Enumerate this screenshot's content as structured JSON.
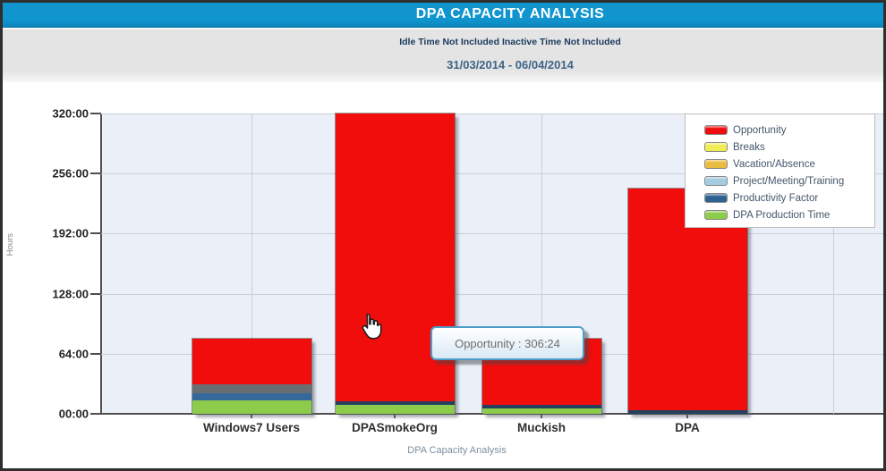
{
  "header": {
    "title": "DPA CAPACITY ANALYSIS",
    "note": "Idle Time Not Included Inactive Time Not Included",
    "date_range": "31/03/2014 - 06/04/2014"
  },
  "axes": {
    "y_label": "Hours",
    "x_title": "DPA Capacity Analysis",
    "y_ticks": [
      {
        "label": "320:00",
        "hours": 320
      },
      {
        "label": "256:00",
        "hours": 256
      },
      {
        "label": "192:00",
        "hours": 192
      },
      {
        "label": "128:00",
        "hours": 128
      },
      {
        "label": "64:00",
        "hours": 64
      },
      {
        "label": "00:00",
        "hours": 0
      }
    ]
  },
  "legend": {
    "items": [
      {
        "label": "Opportunity",
        "color": "#ee0c0c"
      },
      {
        "label": "Breaks",
        "color": "#f0ec55"
      },
      {
        "label": "Vacation/Absence",
        "color": "#e8bc41"
      },
      {
        "label": "Project/Meeting/Training",
        "color": "#a5cbdf"
      },
      {
        "label": "Productivity Factor",
        "color": "#2f6191"
      },
      {
        "label": "DPA Production Time",
        "color": "#8dcb4b"
      }
    ]
  },
  "tooltip": {
    "text": "Opportunity : 306:24"
  },
  "chart_data": {
    "type": "bar",
    "stacked": true,
    "title": "DPA Capacity Analysis",
    "xlabel": "DPA Capacity Analysis",
    "ylabel": "Hours",
    "ylim": [
      0,
      320
    ],
    "y_tick_interval_hours": 64,
    "y_tick_format": "HH:MM",
    "grid": true,
    "legend_position": "top-right",
    "categories": [
      "Windows7 Users",
      "DPASmokeOrg",
      "Muckish",
      "DPA"
    ],
    "series": [
      {
        "name": "Opportunity",
        "color": "#ee0c0c",
        "values_hours": [
          49,
          306.4,
          70,
          236
        ],
        "values_display": [
          "49:00",
          "306:24",
          "70:00",
          "236:00"
        ]
      },
      {
        "name": "Breaks",
        "color": "#f0ec55",
        "values_hours": [
          0,
          0,
          0,
          0
        ]
      },
      {
        "name": "Vacation/Absence",
        "color": "#e8bc41",
        "values_hours": [
          0,
          0,
          0,
          0
        ]
      },
      {
        "name": "Project/Meeting/Training",
        "color": "#a5cbdf",
        "values_hours": [
          9,
          0,
          0,
          0
        ]
      },
      {
        "name": "Productivity Factor",
        "color": "#2f6191",
        "values_hours": [
          8,
          4,
          4,
          4
        ]
      },
      {
        "name": "DPA Production Time",
        "color": "#8dcb4b",
        "values_hours": [
          14,
          9.6,
          6,
          0
        ]
      }
    ],
    "totals_hours": [
      80,
      320,
      80,
      240
    ],
    "totals_display": [
      "80:00",
      "320:00",
      "80:00",
      "240:00"
    ],
    "hovered_point": {
      "category": "DPASmokeOrg",
      "series": "Opportunity",
      "value_display": "306:24"
    }
  },
  "bars": [
    {
      "label": "Windows7 Users",
      "segments": [
        {
          "series": "DPA Production Time",
          "hours": 14,
          "display": "14:00",
          "color": "#8dcb4b"
        },
        {
          "series": "Productivity Factor",
          "hours": 8,
          "display": "8:00",
          "color": "#36699b"
        },
        {
          "series": "Project/Meeting/Training",
          "hours": 9,
          "display": "9:00",
          "color": "#6a6e73"
        },
        {
          "series": "Opportunity",
          "hours": 49,
          "display": "49:00",
          "color": "#f20d0d"
        }
      ]
    },
    {
      "label": "DPASmokeOrg",
      "segments": [
        {
          "series": "DPA Production Time",
          "hours": 9.6,
          "display": "9:36",
          "color": "#8dcb4b"
        },
        {
          "series": "Productivity Factor",
          "hours": 4,
          "display": "4:00",
          "color": "#24405e"
        },
        {
          "series": "Opportunity",
          "hours": 306.4,
          "display": "306:24",
          "color": "#f20d0d"
        }
      ]
    },
    {
      "label": "Muckish",
      "segments": [
        {
          "series": "DPA Production Time",
          "hours": 6,
          "display": "6:00",
          "color": "#8dcb4b"
        },
        {
          "series": "Productivity Factor",
          "hours": 4,
          "display": "4:00",
          "color": "#24405e"
        },
        {
          "series": "Opportunity",
          "hours": 70,
          "display": "70:00",
          "color": "#f20d0d"
        }
      ]
    },
    {
      "label": "DPA",
      "segments": [
        {
          "series": "Productivity Factor",
          "hours": 4,
          "display": "4:00",
          "color": "#24405e"
        },
        {
          "series": "Opportunity",
          "hours": 236,
          "display": "236:00",
          "color": "#f20d0d"
        }
      ]
    }
  ],
  "colors": {
    "header-bar": "#1095cf",
    "header-text": "#ffffff",
    "subheader-bg": "#e4e4e4",
    "note-text": "#1a3a5c",
    "date-text": "#3e6486",
    "plot-bg": "#ebf0f8",
    "gridline": "#c9cfd8",
    "axis": "#4f4f4f",
    "tick-text": "#222222",
    "category-text": "#2f2f2f",
    "axis-title-text": "#7e8fa0",
    "legend-text": "#44566a",
    "tooltip-border": "#4d9dc8",
    "tooltip-text": "#6e6e6e"
  }
}
